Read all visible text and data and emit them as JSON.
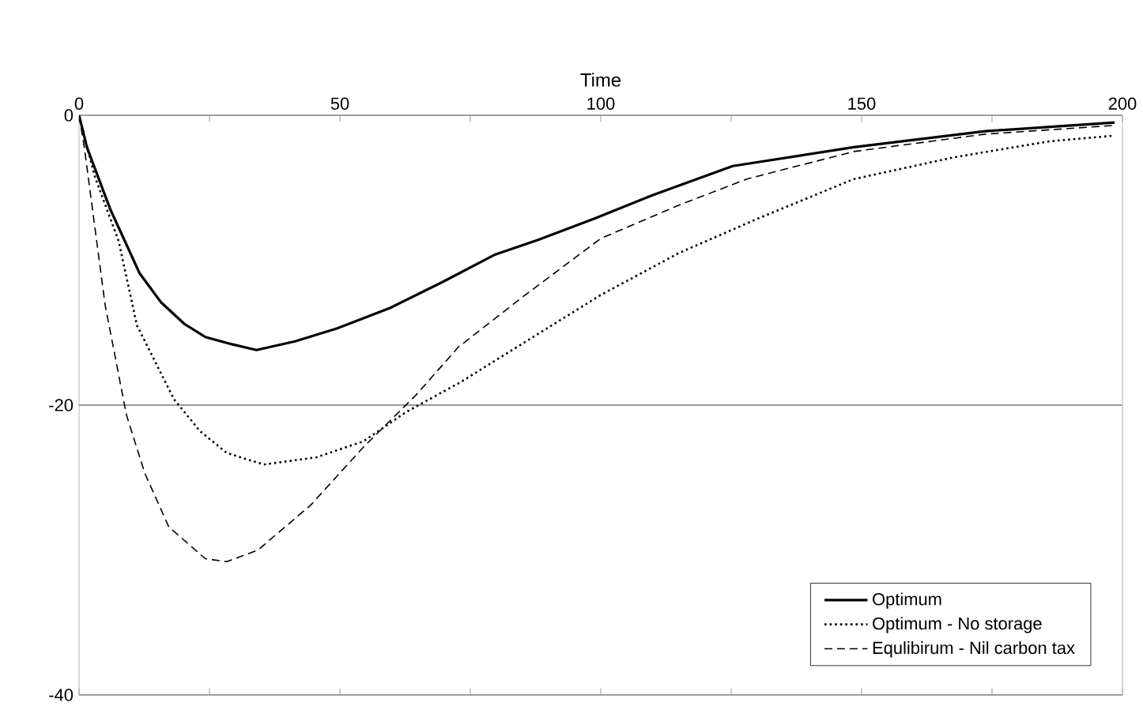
{
  "chart_data": {
    "type": "line",
    "xlabel": "Time",
    "xlim": [
      0,
      200
    ],
    "ylim": [
      -40,
      0
    ],
    "xticks": [
      0,
      {
        "value": 25,
        "label": null
      },
      50,
      {
        "value": 75,
        "label": null
      },
      100,
      {
        "value": 125,
        "label": null
      },
      150,
      {
        "value": 175,
        "label": null
      },
      200
    ],
    "yticks": [
      -40,
      -20,
      0
    ],
    "grid": "y",
    "legend": "bottom right",
    "marker": "none",
    "series": [
      {
        "name": "Optimum",
        "color": "#000000",
        "line_style": "solid",
        "x": [
          0,
          1.5,
          6,
          11.6,
          15.7,
          20.2,
          24.2,
          29.3,
          34,
          41.4,
          49.5,
          59.6,
          69.7,
          79.8,
          88,
          99,
          110,
          125.3,
          148.5,
          173.7,
          198.5
        ],
        "values": [
          0,
          -2.2,
          -6.5,
          -10.9,
          -12.9,
          -14.4,
          -15.3,
          -15.8,
          -16.2,
          -15.6,
          -14.7,
          -13.3,
          -11.5,
          -9.6,
          -8.6,
          -7.1,
          -5.5,
          -3.5,
          -2.2,
          -1.1,
          -0.5
        ]
      },
      {
        "name": "Optimum - No storage",
        "color": "#000000",
        "line_style": "dotted",
        "x": [
          0,
          3,
          7.6,
          11.1,
          18.2,
          23.2,
          28.3,
          35.4,
          45.5,
          54.5,
          62.6,
          73.2,
          84.8,
          100,
          115,
          130.3,
          148.5,
          167.7,
          185.9,
          198.5
        ],
        "values": [
          0,
          -4.2,
          -8.7,
          -14.5,
          -19.6,
          -21.8,
          -23.3,
          -24.1,
          -23.6,
          -22.5,
          -20.5,
          -18.4,
          -15.8,
          -12.4,
          -9.5,
          -7.1,
          -4.4,
          -2.9,
          -1.8,
          -1.4
        ]
      },
      {
        "name": "Equlibirum - Nil carbon tax",
        "color": "#000000",
        "line_style": "dashed",
        "x": [
          0,
          1,
          5,
          9.1,
          12.6,
          17.2,
          24.2,
          28.3,
          34.3,
          44.4,
          54.5,
          64.6,
          72.7,
          84.8,
          100,
          115,
          128,
          148.5,
          173.7,
          198.5
        ],
        "values": [
          0,
          -2.2,
          -13.1,
          -20.7,
          -24.7,
          -28.4,
          -30.6,
          -30.8,
          -30,
          -26.9,
          -22.9,
          -19.3,
          -16,
          -12.6,
          -8.5,
          -6.2,
          -4.4,
          -2.5,
          -1.3,
          -0.7
        ]
      }
    ]
  }
}
